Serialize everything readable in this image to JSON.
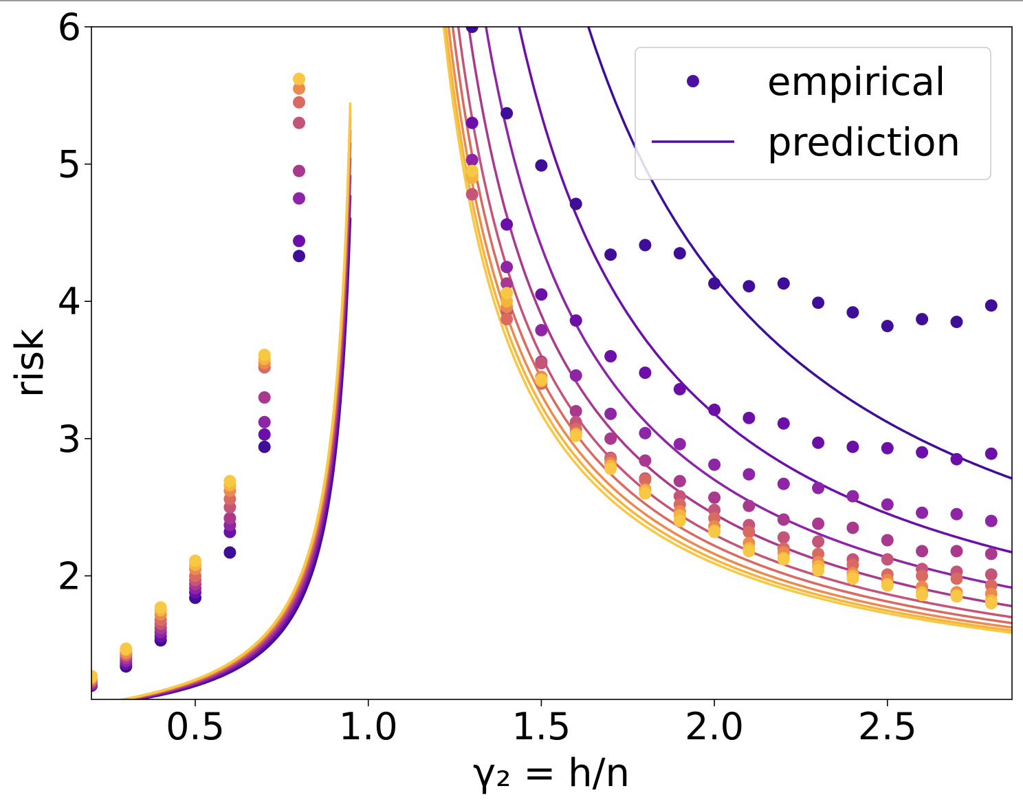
{
  "chart_data": {
    "type": "line",
    "title": "",
    "xlabel": "γ₂ = h/n",
    "ylabel": "risk",
    "xlim": [
      0.2,
      2.86
    ],
    "ylim": [
      1.1,
      6.0
    ],
    "xticks": [
      0.5,
      1.0,
      1.5,
      2.0,
      2.5
    ],
    "xtick_labels": [
      "0.5",
      "1.0",
      "1.5",
      "2.0",
      "2.5"
    ],
    "yticks": [
      2,
      3,
      4,
      5,
      6
    ],
    "ytick_labels": [
      "2",
      "3",
      "4",
      "5",
      "6"
    ],
    "grid": false,
    "legend": {
      "placement": "top-right",
      "entries": [
        {
          "label": "empirical",
          "marker": "dot",
          "color": "#4b10a0"
        },
        {
          "label": "prediction",
          "marker": "line",
          "color": "#4b10a0"
        }
      ]
    },
    "colors": [
      "#3f0e99",
      "#6b0fa8",
      "#8e24a6",
      "#a8398e",
      "#c45478",
      "#d96a62",
      "#ea8a4e",
      "#f5b43e",
      "#f8c844"
    ],
    "x": [
      0.2,
      0.3,
      0.4,
      0.5,
      0.6,
      0.7,
      0.8,
      1.3,
      1.4,
      1.5,
      1.6,
      1.7,
      1.8,
      1.9,
      2.0,
      2.1,
      2.2,
      2.3,
      2.4,
      2.5,
      2.6,
      2.7,
      2.8
    ],
    "series": [
      {
        "values": [
          1.2,
          1.34,
          1.53,
          1.84,
          2.17,
          2.94,
          4.33,
          6.0,
          5.37,
          4.99,
          4.71,
          4.34,
          4.41,
          4.35,
          4.13,
          4.11,
          4.13,
          3.99,
          3.92,
          3.82,
          3.87,
          3.85,
          3.97
        ],
        "a_left": 0.198,
        "b_right": 3.18
      },
      {
        "values": [
          1.2,
          1.36,
          1.56,
          1.88,
          2.32,
          3.03,
          4.44,
          5.3,
          4.56,
          4.05,
          3.86,
          3.6,
          3.48,
          3.36,
          3.21,
          3.15,
          3.11,
          2.97,
          2.94,
          2.93,
          2.9,
          2.85,
          2.89
        ],
        "a_left": 0.207,
        "b_right": 2.18
      },
      {
        "values": [
          1.21,
          1.38,
          1.59,
          1.91,
          2.37,
          3.12,
          4.75,
          5.03,
          4.25,
          3.79,
          3.46,
          3.18,
          3.04,
          2.96,
          2.81,
          2.74,
          2.67,
          2.64,
          2.58,
          2.52,
          2.46,
          2.45,
          2.4
        ],
        "a_left": 0.215,
        "b_right": 1.7
      },
      {
        "values": [
          1.22,
          1.4,
          1.62,
          1.94,
          2.42,
          3.3,
          4.95,
          4.95,
          4.13,
          3.56,
          3.2,
          3.0,
          2.84,
          2.69,
          2.57,
          2.51,
          2.41,
          2.38,
          2.35,
          2.26,
          2.18,
          2.18,
          2.16
        ],
        "a_left": 0.222,
        "b_right": 1.45
      },
      {
        "values": [
          1.23,
          1.42,
          1.65,
          1.97,
          2.5,
          3.52,
          5.3,
          4.78,
          3.93,
          3.55,
          3.12,
          2.86,
          2.71,
          2.58,
          2.48,
          2.37,
          2.28,
          2.25,
          2.12,
          2.12,
          2.05,
          2.03,
          2.01
        ],
        "a_left": 0.228,
        "b_right": 1.3
      },
      {
        "values": [
          1.24,
          1.43,
          1.68,
          2.0,
          2.56,
          3.52,
          5.45,
          4.9,
          3.87,
          3.4,
          3.07,
          2.85,
          2.7,
          2.52,
          2.42,
          2.32,
          2.2,
          2.16,
          2.08,
          2.01,
          2.0,
          1.98,
          1.93
        ],
        "a_left": 0.233,
        "b_right": 1.22
      },
      {
        "values": [
          1.25,
          1.44,
          1.72,
          2.05,
          2.62,
          3.55,
          5.55,
          4.92,
          3.96,
          3.45,
          3.04,
          2.82,
          2.63,
          2.47,
          2.36,
          2.24,
          2.17,
          2.1,
          2.02,
          1.97,
          1.92,
          1.88,
          1.87
        ],
        "a_left": 0.238,
        "b_right": 1.16
      },
      {
        "values": [
          1.26,
          1.46,
          1.75,
          2.08,
          2.66,
          3.58,
          5.62,
          4.9,
          4.0,
          3.42,
          3.03,
          2.8,
          2.62,
          2.44,
          2.33,
          2.2,
          2.13,
          2.07,
          2.0,
          1.94,
          1.88,
          1.86,
          1.82
        ],
        "a_left": 0.241,
        "b_right": 1.12
      },
      {
        "values": [
          1.27,
          1.47,
          1.77,
          2.11,
          2.69,
          3.61,
          5.62,
          4.95,
          4.06,
          3.43,
          3.02,
          2.78,
          2.6,
          2.4,
          2.32,
          2.18,
          2.12,
          2.04,
          1.98,
          1.93,
          1.86,
          1.85,
          1.8
        ],
        "a_left": 0.244,
        "b_right": 1.09
      }
    ]
  }
}
